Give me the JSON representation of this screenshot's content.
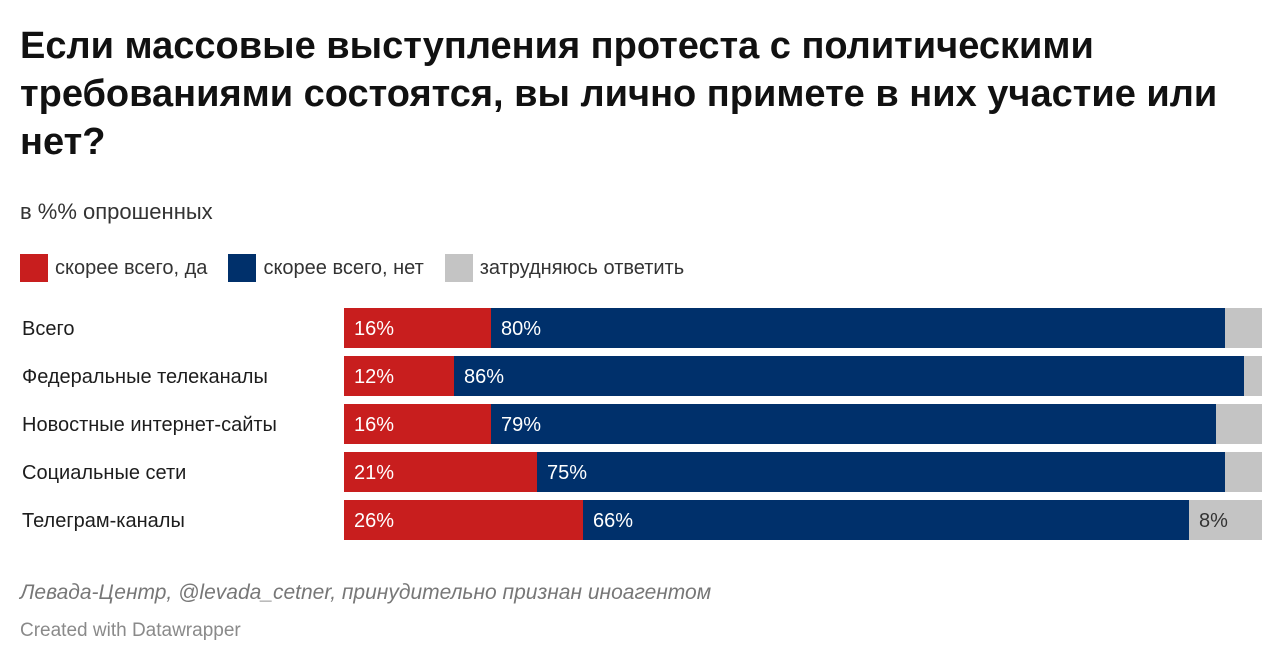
{
  "header": {
    "title": "Если массовые выступления протеста с политическими требованиями состоятся, вы лично примете в них участие или нет?",
    "subtitle": "в %% опрошенных"
  },
  "legend": {
    "items": [
      {
        "label": "скорее всего, да",
        "color": "#c81e1e"
      },
      {
        "label": "скорее всего, нет",
        "color": "#00306b"
      },
      {
        "label": "затрудняюсь ответить",
        "color": "#c4c4c4"
      }
    ]
  },
  "footer": {
    "source": "Левада-Центр, @levada_cetner, принудительно признан иноагентом",
    "credit": "Created with Datawrapper"
  },
  "chart_data": {
    "type": "bar",
    "orientation": "horizontal",
    "stacked": true,
    "unit": "%",
    "categories": [
      "Всего",
      "Федеральные телеканалы",
      "Новостные интернет-сайты",
      "Социальные сети",
      "Телеграм-каналы"
    ],
    "series": [
      {
        "name": "скорее всего, да",
        "color": "#c81e1e",
        "values": [
          16,
          12,
          16,
          21,
          26
        ]
      },
      {
        "name": "скорее всего, нет",
        "color": "#00306b",
        "values": [
          80,
          86,
          79,
          75,
          66
        ]
      },
      {
        "name": "затрудняюсь ответить",
        "color": "#c4c4c4",
        "values": [
          4,
          2,
          5,
          4,
          8
        ]
      }
    ],
    "data_labels": [
      [
        "16%",
        "80%",
        ""
      ],
      [
        "12%",
        "86%",
        ""
      ],
      [
        "16%",
        "79%",
        ""
      ],
      [
        "21%",
        "75%",
        ""
      ],
      [
        "26%",
        "66%",
        "8%"
      ]
    ],
    "xlim": [
      0,
      100
    ],
    "grid": false,
    "legend_position": "top-left"
  }
}
